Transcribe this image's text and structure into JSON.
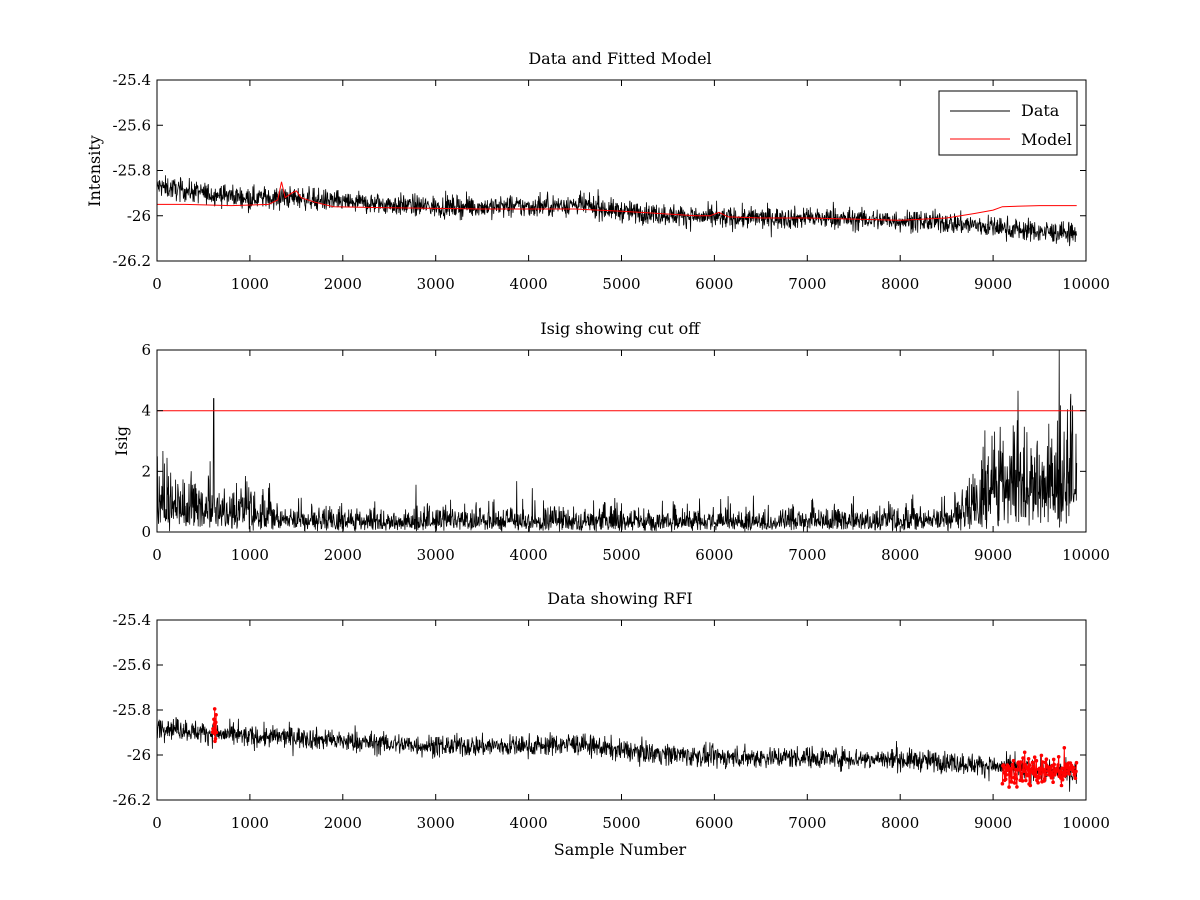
{
  "chart_data": [
    {
      "type": "line",
      "title": "Data and Fitted Model",
      "xlabel": "",
      "ylabel": "Intensity",
      "xlim": [
        0,
        10000
      ],
      "ylim": [
        -26.2,
        -25.4
      ],
      "xticks": [
        0,
        1000,
        2000,
        3000,
        4000,
        5000,
        6000,
        7000,
        8000,
        9000,
        10000
      ],
      "xtick_labels": [
        "0",
        "1000",
        "2000",
        "3000",
        "4000",
        "5000",
        "6000",
        "7000",
        "8000",
        "9000",
        "10000"
      ],
      "yticks": [
        -25.4,
        -25.6,
        -25.8,
        -26,
        -26.2
      ],
      "ytick_labels": [
        "-25.4",
        "-25.6",
        "-25.8",
        "-26",
        "-26.2"
      ],
      "grid": false,
      "legend": {
        "position": "top-right",
        "entries": [
          "Data",
          "Model"
        ]
      },
      "series": [
        {
          "name": "Data",
          "color": "#000000",
          "style": "noisy-line",
          "noise_amplitude": 0.06,
          "trend": {
            "x": [
              0,
              500,
              1000,
              1500,
              2000,
              3000,
              4000,
              4500,
              5000,
              6000,
              7000,
              8000,
              8500,
              9000,
              9500,
              9900
            ],
            "y": [
              -25.87,
              -25.9,
              -25.92,
              -25.92,
              -25.94,
              -25.96,
              -25.96,
              -25.95,
              -25.98,
              -26.01,
              -26.01,
              -26.02,
              -26.03,
              -26.05,
              -26.07,
              -26.08
            ]
          }
        },
        {
          "name": "Model",
          "color": "#ff0000",
          "style": "line",
          "x": [
            0,
            300,
            800,
            1200,
            1300,
            1340,
            1380,
            1450,
            1500,
            1550,
            1700,
            1900,
            2500,
            3500,
            4500,
            5000,
            5800,
            5950,
            6050,
            6150,
            6500,
            7000,
            7500,
            8000,
            8500,
            8800,
            9000,
            9100,
            9500,
            9900
          ],
          "y": [
            -25.95,
            -25.95,
            -25.955,
            -25.95,
            -25.93,
            -25.85,
            -25.92,
            -25.9,
            -25.89,
            -25.92,
            -25.94,
            -25.96,
            -25.965,
            -25.97,
            -25.97,
            -25.98,
            -26.0,
            -26.0,
            -25.985,
            -26.005,
            -26.01,
            -26.01,
            -26.015,
            -26.02,
            -26.01,
            -25.99,
            -25.975,
            -25.96,
            -25.955,
            -25.955
          ]
        }
      ]
    },
    {
      "type": "line",
      "title": "Isig showing cut off",
      "xlabel": "",
      "ylabel": "Isig",
      "xlim": [
        0,
        10000
      ],
      "ylim": [
        0,
        6
      ],
      "xticks": [
        0,
        1000,
        2000,
        3000,
        4000,
        5000,
        6000,
        7000,
        8000,
        9000,
        10000
      ],
      "xtick_labels": [
        "0",
        "1000",
        "2000",
        "3000",
        "4000",
        "5000",
        "6000",
        "7000",
        "8000",
        "9000",
        "10000"
      ],
      "yticks": [
        0,
        2,
        4,
        6
      ],
      "ytick_labels": [
        "0",
        "2",
        "4",
        "6"
      ],
      "grid": false,
      "series": [
        {
          "color": "#000000",
          "style": "noisy-line",
          "trend": {
            "x": [
              0,
              500,
              1000,
              1300,
              2000,
              5000,
              8000,
              8500,
              8800,
              9000,
              9500,
              9900
            ],
            "y": [
              1.3,
              1.0,
              0.9,
              0.6,
              0.5,
              0.5,
              0.5,
              0.6,
              1.2,
              2.2,
              2.4,
              2.4
            ]
          },
          "spike": {
            "x": 610,
            "y": 4.4
          }
        },
        {
          "color": "#ff0000",
          "style": "hline",
          "x": [
            0,
            10000
          ],
          "y": [
            4,
            4
          ]
        }
      ]
    },
    {
      "type": "line",
      "title": "Data showing RFI",
      "xlabel": "Sample Number",
      "ylabel": "",
      "xlim": [
        0,
        10000
      ],
      "ylim": [
        -26.2,
        -25.4
      ],
      "xticks": [
        0,
        1000,
        2000,
        3000,
        4000,
        5000,
        6000,
        7000,
        8000,
        9000,
        10000
      ],
      "xtick_labels": [
        "0",
        "1000",
        "2000",
        "3000",
        "4000",
        "5000",
        "6000",
        "7000",
        "8000",
        "9000",
        "10000"
      ],
      "yticks": [
        -25.4,
        -25.6,
        -25.8,
        -26,
        -26.2
      ],
      "ytick_labels": [
        "-25.4",
        "-25.6",
        "-25.8",
        "-26",
        "-26.2"
      ],
      "grid": false,
      "series": [
        {
          "color": "#000000",
          "style": "noisy-line",
          "noise_amplitude": 0.06,
          "trend": {
            "x": [
              0,
              500,
              1000,
              1500,
              2000,
              3000,
              4000,
              4500,
              5000,
              6000,
              7000,
              8000,
              8500,
              9000,
              9500,
              9900
            ],
            "y": [
              -25.87,
              -25.9,
              -25.92,
              -25.92,
              -25.94,
              -25.96,
              -25.96,
              -25.95,
              -25.98,
              -26.01,
              -26.01,
              -26.02,
              -26.03,
              -26.05,
              -26.07,
              -26.08
            ]
          }
        },
        {
          "color": "#ff0000",
          "style": "markers",
          "regions": [
            {
              "x": [
                600,
                640
              ],
              "y": [
                -25.97,
                -25.76
              ]
            },
            {
              "x": [
                9100,
                9900
              ],
              "y": [
                -26.18,
                -25.96
              ]
            }
          ]
        }
      ]
    }
  ]
}
